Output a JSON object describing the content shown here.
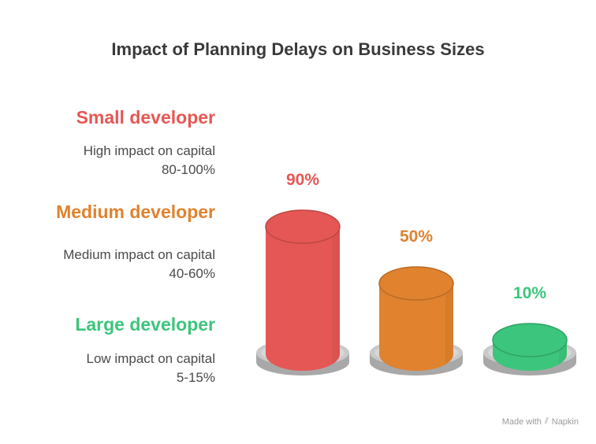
{
  "title": "Impact of Planning Delays on Business Sizes",
  "chart_data": {
    "type": "bar",
    "style": "3d-cylinder",
    "title": "Impact of Planning Delays on Business Sizes",
    "categories": [
      "Small developer",
      "Medium developer",
      "Large developer"
    ],
    "values": [
      90,
      50,
      10
    ],
    "value_labels": [
      "90%",
      "50%",
      "10%"
    ],
    "colors": [
      "#E55754",
      "#E0822E",
      "#3CC57C"
    ],
    "ylim": [
      0,
      100
    ],
    "xlabel": "",
    "ylabel": "",
    "legend_placement": "left"
  },
  "legend": [
    {
      "name": "Small developer",
      "desc_line1": "High impact on capital",
      "desc_line2": "80-100%",
      "color": "#E55754"
    },
    {
      "name": "Medium developer",
      "desc_line1": "Medium impact on capital",
      "desc_line2": "40-60%",
      "color": "#E0822E"
    },
    {
      "name": "Large developer",
      "desc_line1": "Low impact on capital",
      "desc_line2": "5-15%",
      "color": "#3CC57C"
    }
  ],
  "credit": {
    "prefix": "Made with",
    "brand": "Napkin",
    "icon": "napkin-icon"
  }
}
